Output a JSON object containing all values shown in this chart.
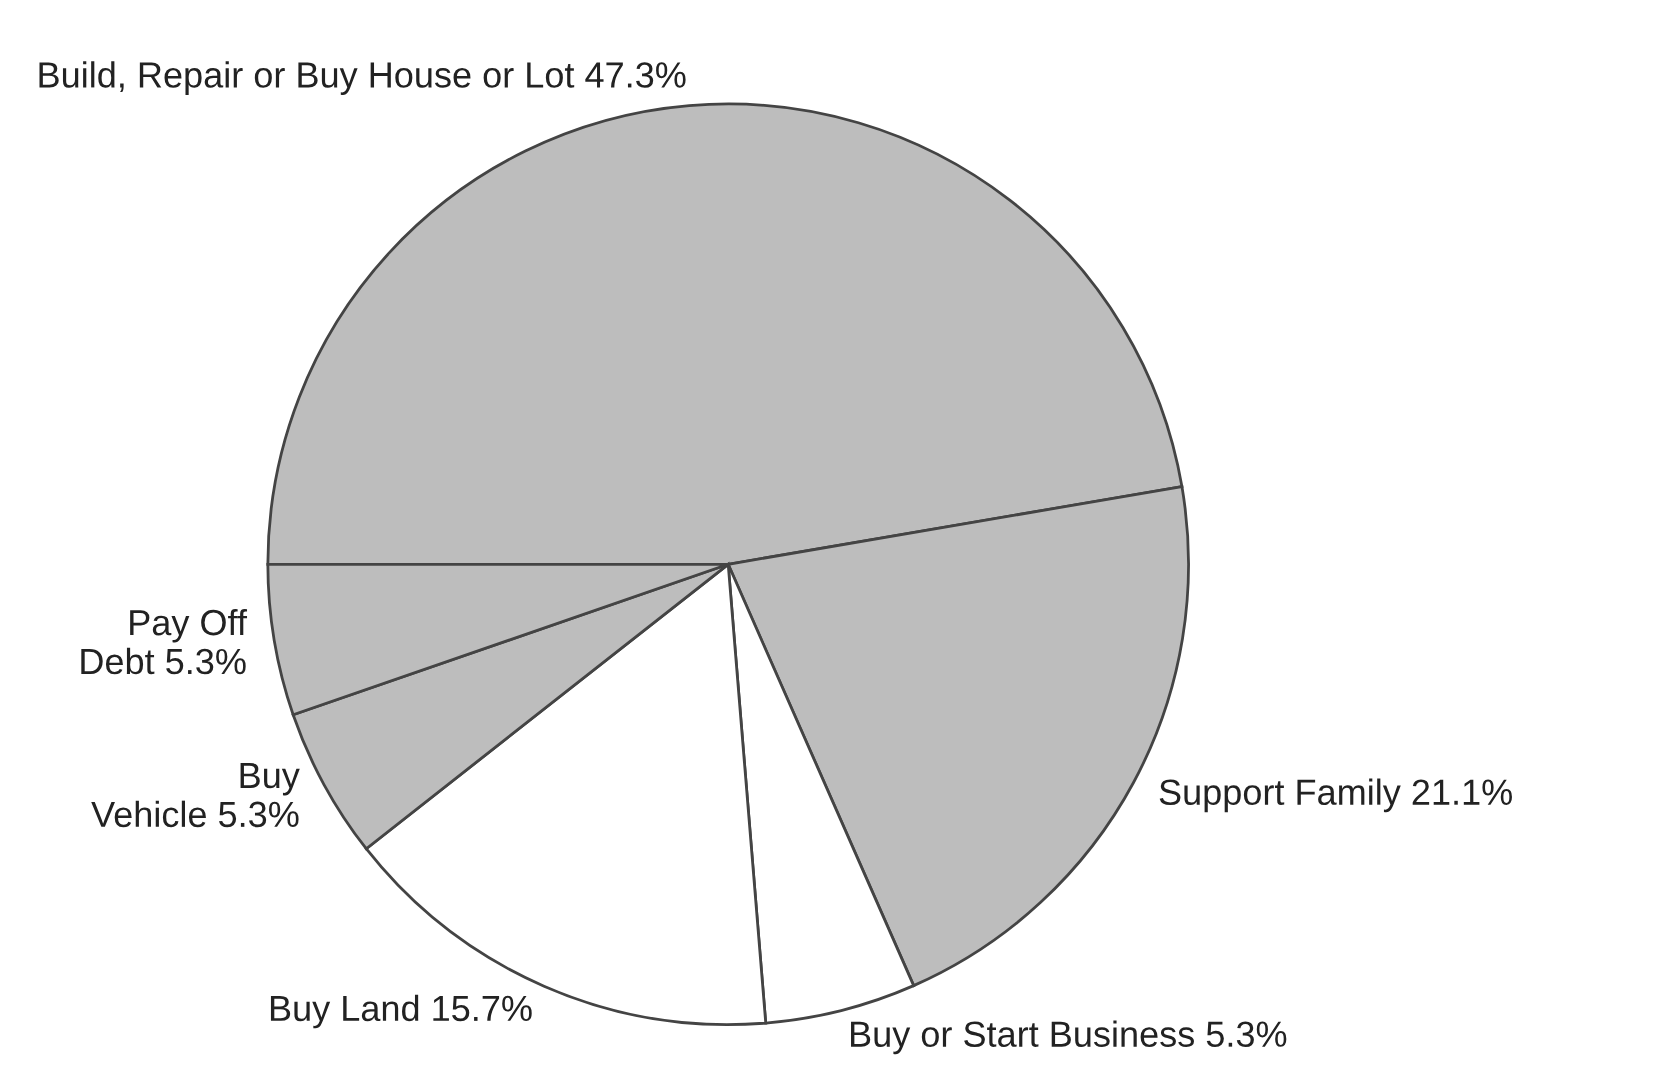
{
  "chart_data": {
    "type": "pie",
    "categories": [
      "Build, Repair or Buy House or Lot",
      "Support Family",
      "Buy or Start Business",
      "Buy Land",
      "Buy\nVehicle",
      "Pay Off\nDebt"
    ],
    "values": [
      47.3,
      21.1,
      5.3,
      15.7,
      5.3,
      5.3
    ],
    "value_labels": [
      "47.3%",
      "21.1%",
      "5.3%",
      "15.7%",
      "5.3%",
      "5.3%"
    ],
    "colors": [
      "#bdbdbd",
      "#bdbdbd",
      "#ffffff",
      "#ffffff",
      "#bdbdbd",
      "#bdbdbd"
    ],
    "legend": false
  }
}
